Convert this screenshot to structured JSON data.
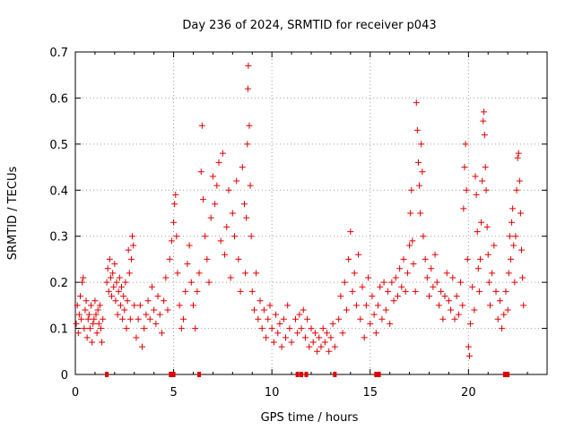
{
  "chart_data": {
    "type": "scatter",
    "title": "Day 236 of 2024, SRMTID for receiver p043",
    "xlabel": "GPS time / hours",
    "ylabel": "SRMTID / TECUs",
    "xlim": [
      0,
      24
    ],
    "ylim": [
      0,
      0.7
    ],
    "xticks": [
      0,
      5,
      10,
      15,
      20
    ],
    "xtick_labels": [
      "0",
      "5",
      "10",
      "15",
      "20"
    ],
    "yticks": [
      0,
      0.1,
      0.2,
      0.3,
      0.4,
      0.5,
      0.6,
      0.7
    ],
    "ytick_labels": [
      "0",
      "0.1",
      "0.2",
      "0.3",
      "0.4",
      "0.5",
      "0.6",
      "0.7"
    ],
    "grid": true,
    "marker": "+",
    "series": [
      {
        "name": "SRMTID",
        "color": "#e00000",
        "points": [
          [
            0.05,
            0.11
          ],
          [
            0.1,
            0.15
          ],
          [
            0.15,
            0.09
          ],
          [
            0.2,
            0.13
          ],
          [
            0.25,
            0.17
          ],
          [
            0.3,
            0.12
          ],
          [
            0.35,
            0.2
          ],
          [
            0.4,
            0.21
          ],
          [
            0.45,
            0.1
          ],
          [
            0.5,
            0.14
          ],
          [
            0.55,
            0.16
          ],
          [
            0.6,
            0.08
          ],
          [
            0.65,
            0.12
          ],
          [
            0.7,
            0.13
          ],
          [
            0.75,
            0.1
          ],
          [
            0.8,
            0.15
          ],
          [
            0.85,
            0.07
          ],
          [
            0.9,
            0.11
          ],
          [
            0.95,
            0.12
          ],
          [
            1.0,
            0.16
          ],
          [
            1.05,
            0.13
          ],
          [
            1.1,
            0.09
          ],
          [
            1.15,
            0.14
          ],
          [
            1.2,
            0.11
          ],
          [
            1.25,
            0.15
          ],
          [
            1.3,
            0.1
          ],
          [
            1.35,
            0.07
          ],
          [
            1.4,
            0.12
          ],
          [
            1.6,
            0.2
          ],
          [
            1.65,
            0.23
          ],
          [
            1.7,
            0.18
          ],
          [
            1.75,
            0.25
          ],
          [
            1.8,
            0.21
          ],
          [
            1.85,
            0.17
          ],
          [
            1.9,
            0.22
          ],
          [
            1.95,
            0.19
          ],
          [
            2.0,
            0.24
          ],
          [
            2.05,
            0.16
          ],
          [
            2.1,
            0.2
          ],
          [
            2.15,
            0.13
          ],
          [
            2.2,
            0.18
          ],
          [
            2.25,
            0.21
          ],
          [
            2.3,
            0.15
          ],
          [
            2.35,
            0.19
          ],
          [
            2.4,
            0.12
          ],
          [
            2.45,
            0.17
          ],
          [
            2.5,
            0.14
          ],
          [
            2.55,
            0.2
          ],
          [
            2.6,
            0.1
          ],
          [
            2.65,
            0.16
          ],
          [
            2.7,
            0.27
          ],
          [
            2.75,
            0.22
          ],
          [
            2.8,
            0.12
          ],
          [
            2.85,
            0.25
          ],
          [
            2.9,
            0.3
          ],
          [
            2.95,
            0.28
          ],
          [
            3.0,
            0.15
          ],
          [
            3.1,
            0.08
          ],
          [
            3.2,
            0.12
          ],
          [
            3.3,
            0.15
          ],
          [
            3.4,
            0.06
          ],
          [
            3.5,
            0.1
          ],
          [
            3.6,
            0.13
          ],
          [
            3.7,
            0.16
          ],
          [
            3.8,
            0.12
          ],
          [
            3.9,
            0.19
          ],
          [
            4.0,
            0.14
          ],
          [
            4.1,
            0.11
          ],
          [
            4.2,
            0.17
          ],
          [
            4.3,
            0.13
          ],
          [
            4.4,
            0.09
          ],
          [
            4.5,
            0.16
          ],
          [
            4.6,
            0.21
          ],
          [
            4.7,
            0.14
          ],
          [
            4.8,
            0.25
          ],
          [
            4.9,
            0.29
          ],
          [
            5.0,
            0.33
          ],
          [
            5.05,
            0.37
          ],
          [
            5.1,
            0.39
          ],
          [
            5.15,
            0.3
          ],
          [
            5.2,
            0.22
          ],
          [
            5.3,
            0.15
          ],
          [
            5.4,
            0.1
          ],
          [
            5.5,
            0.12
          ],
          [
            5.6,
            0.18
          ],
          [
            5.7,
            0.24
          ],
          [
            5.8,
            0.28
          ],
          [
            5.9,
            0.2
          ],
          [
            6.0,
            0.15
          ],
          [
            6.1,
            0.1
          ],
          [
            6.2,
            0.18
          ],
          [
            6.3,
            0.22
          ],
          [
            6.4,
            0.44
          ],
          [
            6.45,
            0.54
          ],
          [
            6.5,
            0.38
          ],
          [
            6.6,
            0.3
          ],
          [
            6.7,
            0.25
          ],
          [
            6.8,
            0.2
          ],
          [
            6.9,
            0.34
          ],
          [
            7.0,
            0.43
          ],
          [
            7.1,
            0.37
          ],
          [
            7.2,
            0.41
          ],
          [
            7.3,
            0.46
          ],
          [
            7.4,
            0.29
          ],
          [
            7.5,
            0.48
          ],
          [
            7.6,
            0.26
          ],
          [
            7.7,
            0.32
          ],
          [
            7.8,
            0.4
          ],
          [
            7.9,
            0.21
          ],
          [
            8.0,
            0.35
          ],
          [
            8.1,
            0.3
          ],
          [
            8.2,
            0.42
          ],
          [
            8.3,
            0.25
          ],
          [
            8.4,
            0.18
          ],
          [
            8.5,
            0.45
          ],
          [
            8.6,
            0.37
          ],
          [
            8.65,
            0.22
          ],
          [
            8.7,
            0.34
          ],
          [
            8.75,
            0.5
          ],
          [
            8.78,
            0.62
          ],
          [
            8.8,
            0.67
          ],
          [
            8.85,
            0.54
          ],
          [
            8.9,
            0.41
          ],
          [
            8.95,
            0.3
          ],
          [
            9.0,
            0.18
          ],
          [
            9.1,
            0.14
          ],
          [
            9.2,
            0.22
          ],
          [
            9.3,
            0.12
          ],
          [
            9.4,
            0.16
          ],
          [
            9.5,
            0.1
          ],
          [
            9.6,
            0.14
          ],
          [
            9.7,
            0.08
          ],
          [
            9.8,
            0.12
          ],
          [
            9.9,
            0.15
          ],
          [
            10.0,
            0.1
          ],
          [
            10.1,
            0.07
          ],
          [
            10.2,
            0.13
          ],
          [
            10.3,
            0.09
          ],
          [
            10.4,
            0.11
          ],
          [
            10.5,
            0.06
          ],
          [
            10.6,
            0.12
          ],
          [
            10.7,
            0.08
          ],
          [
            10.8,
            0.15
          ],
          [
            10.9,
            0.1
          ],
          [
            11.0,
            0.07
          ],
          [
            11.2,
            0.12
          ],
          [
            11.3,
            0.09
          ],
          [
            11.4,
            0.13
          ],
          [
            11.5,
            0.1
          ],
          [
            11.6,
            0.14
          ],
          [
            11.7,
            0.08
          ],
          [
            11.8,
            0.12
          ],
          [
            11.9,
            0.06
          ],
          [
            12.0,
            0.1
          ],
          [
            12.1,
            0.07
          ],
          [
            12.2,
            0.09
          ],
          [
            12.3,
            0.05
          ],
          [
            12.4,
            0.08
          ],
          [
            12.5,
            0.06
          ],
          [
            12.6,
            0.1
          ],
          [
            12.7,
            0.07
          ],
          [
            12.8,
            0.09
          ],
          [
            12.9,
            0.05
          ],
          [
            13.0,
            0.08
          ],
          [
            13.1,
            0.11
          ],
          [
            13.2,
            0.06
          ],
          [
            13.4,
            0.12
          ],
          [
            13.5,
            0.17
          ],
          [
            13.6,
            0.09
          ],
          [
            13.7,
            0.2
          ],
          [
            13.8,
            0.14
          ],
          [
            13.9,
            0.25
          ],
          [
            14.0,
            0.31
          ],
          [
            14.1,
            0.18
          ],
          [
            14.2,
            0.22
          ],
          [
            14.3,
            0.15
          ],
          [
            14.4,
            0.26
          ],
          [
            14.5,
            0.12
          ],
          [
            14.6,
            0.19
          ],
          [
            14.7,
            0.08
          ],
          [
            14.8,
            0.15
          ],
          [
            14.9,
            0.21
          ],
          [
            15.0,
            0.11
          ],
          [
            15.1,
            0.17
          ],
          [
            15.2,
            0.13
          ],
          [
            15.3,
            0.09
          ],
          [
            15.4,
            0.15
          ],
          [
            15.5,
            0.19
          ],
          [
            15.6,
            0.12
          ],
          [
            15.7,
            0.2
          ],
          [
            15.8,
            0.14
          ],
          [
            15.9,
            0.18
          ],
          [
            16.0,
            0.11
          ],
          [
            16.1,
            0.2
          ],
          [
            16.2,
            0.16
          ],
          [
            16.3,
            0.21
          ],
          [
            16.4,
            0.17
          ],
          [
            16.5,
            0.23
          ],
          [
            16.6,
            0.19
          ],
          [
            16.7,
            0.25
          ],
          [
            16.8,
            0.18
          ],
          [
            16.9,
            0.22
          ],
          [
            17.0,
            0.28
          ],
          [
            17.05,
            0.35
          ],
          [
            17.1,
            0.4
          ],
          [
            17.15,
            0.29
          ],
          [
            17.2,
            0.24
          ],
          [
            17.3,
            0.18
          ],
          [
            17.35,
            0.59
          ],
          [
            17.4,
            0.53
          ],
          [
            17.45,
            0.46
          ],
          [
            17.5,
            0.41
          ],
          [
            17.55,
            0.35
          ],
          [
            17.6,
            0.5
          ],
          [
            17.65,
            0.44
          ],
          [
            17.7,
            0.3
          ],
          [
            17.8,
            0.25
          ],
          [
            17.9,
            0.21
          ],
          [
            18.0,
            0.17
          ],
          [
            18.1,
            0.23
          ],
          [
            18.2,
            0.19
          ],
          [
            18.3,
            0.26
          ],
          [
            18.4,
            0.2
          ],
          [
            18.5,
            0.15
          ],
          [
            18.6,
            0.18
          ],
          [
            18.7,
            0.12
          ],
          [
            18.8,
            0.17
          ],
          [
            18.9,
            0.22
          ],
          [
            19.0,
            0.16
          ],
          [
            19.1,
            0.14
          ],
          [
            19.2,
            0.21
          ],
          [
            19.3,
            0.12
          ],
          [
            19.4,
            0.17
          ],
          [
            19.5,
            0.13
          ],
          [
            19.6,
            0.2
          ],
          [
            19.7,
            0.15
          ],
          [
            19.75,
            0.36
          ],
          [
            19.8,
            0.45
          ],
          [
            19.85,
            0.5
          ],
          [
            19.9,
            0.4
          ],
          [
            19.95,
            0.25
          ],
          [
            20.0,
            0.06
          ],
          [
            20.05,
            0.04
          ],
          [
            20.1,
            0.11
          ],
          [
            20.2,
            0.19
          ],
          [
            20.3,
            0.14
          ],
          [
            20.35,
            0.43
          ],
          [
            20.4,
            0.39
          ],
          [
            20.45,
            0.31
          ],
          [
            20.5,
            0.23
          ],
          [
            20.55,
            0.18
          ],
          [
            20.6,
            0.25
          ],
          [
            20.65,
            0.33
          ],
          [
            20.7,
            0.42
          ],
          [
            20.75,
            0.55
          ],
          [
            20.78,
            0.57
          ],
          [
            20.82,
            0.52
          ],
          [
            20.86,
            0.45
          ],
          [
            20.9,
            0.4
          ],
          [
            20.95,
            0.32
          ],
          [
            21.0,
            0.26
          ],
          [
            21.05,
            0.2
          ],
          [
            21.1,
            0.15
          ],
          [
            21.2,
            0.22
          ],
          [
            21.3,
            0.28
          ],
          [
            21.4,
            0.18
          ],
          [
            21.5,
            0.12
          ],
          [
            21.6,
            0.16
          ],
          [
            21.7,
            0.1
          ],
          [
            21.8,
            0.13
          ],
          [
            21.9,
            0.18
          ],
          [
            22.0,
            0.14
          ],
          [
            22.05,
            0.22
          ],
          [
            22.1,
            0.3
          ],
          [
            22.15,
            0.25
          ],
          [
            22.2,
            0.33
          ],
          [
            22.25,
            0.36
          ],
          [
            22.3,
            0.28
          ],
          [
            22.35,
            0.2
          ],
          [
            22.4,
            0.3
          ],
          [
            22.45,
            0.4
          ],
          [
            22.5,
            0.47
          ],
          [
            22.55,
            0.48
          ],
          [
            22.6,
            0.42
          ],
          [
            22.65,
            0.35
          ],
          [
            22.7,
            0.27
          ],
          [
            22.75,
            0.21
          ],
          [
            22.8,
            0.15
          ]
        ]
      }
    ],
    "baseline_markers": {
      "color": "#e00000",
      "x": [
        1.6,
        4.85,
        5.0,
        6.3,
        11.3,
        11.5,
        11.75,
        13.2,
        15.3,
        15.45,
        21.85,
        22.0
      ]
    }
  }
}
